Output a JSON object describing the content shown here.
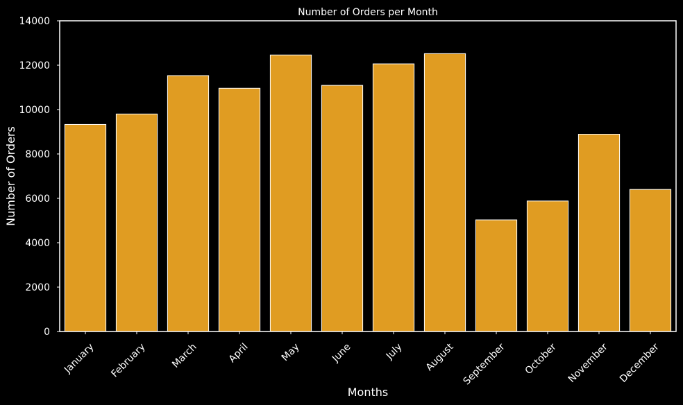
{
  "chart_data": {
    "type": "bar",
    "title": "Number of Orders per Month",
    "xlabel": "Months",
    "ylabel": "Number of Orders",
    "categories": [
      "January",
      "February",
      "March",
      "April",
      "May",
      "June",
      "July",
      "August",
      "September",
      "October",
      "November",
      "December"
    ],
    "values": [
      9330,
      9800,
      11530,
      10960,
      12460,
      11090,
      12060,
      12520,
      5030,
      5880,
      8890,
      6400
    ],
    "ylim": [
      0,
      14000
    ],
    "yticks": [
      0,
      2000,
      4000,
      6000,
      8000,
      10000,
      12000,
      14000
    ],
    "ytick_labels": [
      "0",
      "2000",
      "4000",
      "6000",
      "8000",
      "10000",
      "12000",
      "14000"
    ],
    "grid": false,
    "legend": "none",
    "colors": {
      "background": "#000000",
      "bar_fill": "#e09c22",
      "bar_edge": "#ffffff",
      "axis": "#ffffff",
      "text": "#ffffff"
    }
  }
}
